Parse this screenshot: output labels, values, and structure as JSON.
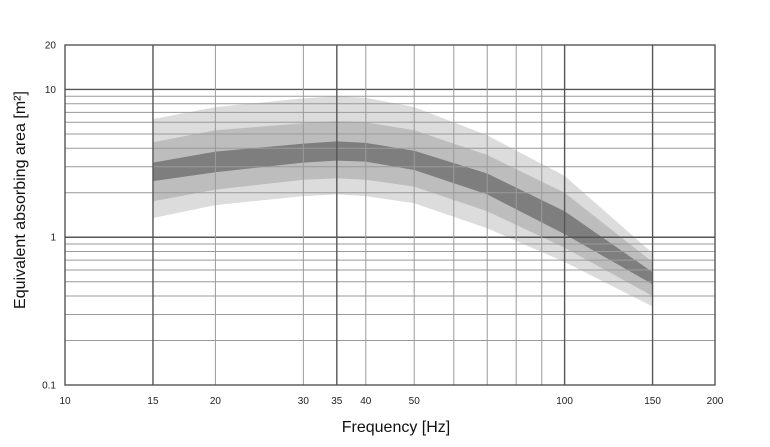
{
  "chart_data": {
    "type": "area",
    "xlabel": "Frequency [Hz]",
    "ylabel": "Equivalent absorbing area  [m²]",
    "x_scale": "log",
    "y_scale": "log",
    "xlim": [
      10,
      200
    ],
    "ylim": [
      0.1,
      20
    ],
    "grid": true,
    "x_tick_labels": [
      "10",
      "15",
      "20",
      "30",
      "35",
      "40",
      "50",
      "100",
      "150",
      "200"
    ],
    "y_tick_labels": [
      "0.1",
      "1",
      "10",
      "20"
    ],
    "x": [
      15,
      20,
      30,
      35,
      40,
      50,
      70,
      100,
      150
    ],
    "bands": [
      {
        "fill": "#dcdcdc",
        "lower": [
          1.35,
          1.65,
          1.9,
          1.95,
          1.9,
          1.7,
          1.15,
          0.68,
          0.34
        ],
        "upper": [
          6.3,
          7.6,
          8.7,
          9.0,
          8.8,
          7.6,
          4.9,
          2.6,
          0.78
        ]
      },
      {
        "fill": "#bdbdbd",
        "lower": [
          1.75,
          2.1,
          2.45,
          2.5,
          2.45,
          2.2,
          1.5,
          0.85,
          0.4
        ],
        "upper": [
          4.4,
          5.3,
          5.9,
          6.1,
          6.0,
          5.3,
          3.6,
          2.0,
          0.68
        ]
      },
      {
        "fill": "#7e7e7e",
        "lower": [
          2.4,
          2.75,
          3.2,
          3.3,
          3.25,
          2.85,
          1.95,
          1.05,
          0.48
        ],
        "upper": [
          3.2,
          3.8,
          4.3,
          4.45,
          4.35,
          3.85,
          2.7,
          1.5,
          0.58
        ]
      }
    ]
  }
}
